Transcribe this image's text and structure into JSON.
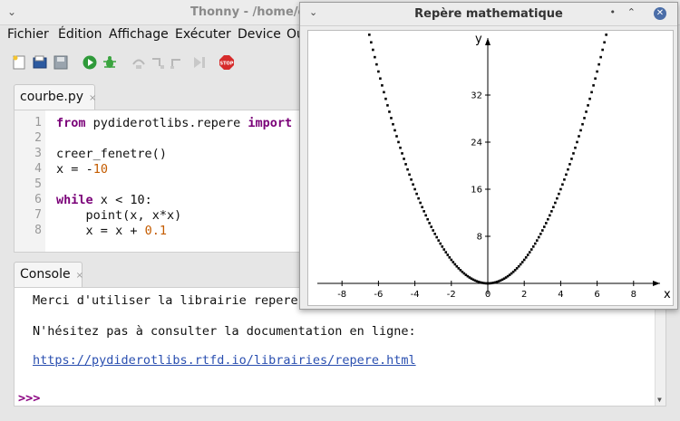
{
  "thonny": {
    "title": "Thonny - /home/c",
    "menu": [
      "Fichier",
      "Édition",
      "Affichage",
      "Exécuter",
      "Device",
      "Ou"
    ],
    "toolbar": {
      "new": "new-file-icon",
      "open": "open-file-icon",
      "save": "save-file-icon",
      "run": "run-icon",
      "debug": "debug-icon",
      "step_over": "step-over-icon",
      "step_into": "step-into-icon",
      "step_out": "step-out-icon",
      "resume": "resume-icon",
      "stop": "stop-icon",
      "stop_label": "STOP"
    },
    "editor_tab": {
      "label": "courbe.py",
      "close": "×"
    },
    "editor_lines": [
      {
        "n": "1",
        "code": "from pydiderotlibs.repere import *"
      },
      {
        "n": "2",
        "code": ""
      },
      {
        "n": "3",
        "code": "creer_fenetre()"
      },
      {
        "n": "4",
        "code": "x = -10"
      },
      {
        "n": "5",
        "code": ""
      },
      {
        "n": "6",
        "code": "while x < 10:"
      },
      {
        "n": "7",
        "code": "    point(x, x*x)"
      },
      {
        "n": "8",
        "code": "    x = x + 0.1"
      }
    ],
    "console_tab": {
      "label": "Console",
      "close": "×"
    },
    "console_lines": [
      "Merci d'utiliser la librairie repere",
      "N'hésitez pas à consulter la documentation en ligne:",
      "https://pydiderotlibs.rtfd.io/librairies/repere.html"
    ],
    "prompt": ">>>"
  },
  "plot_window": {
    "title": "Repère mathematique",
    "buttons": {
      "collapse": "⌄",
      "minimize": "•",
      "maximize": "⌃",
      "close": "✕"
    }
  },
  "chart_data": {
    "type": "scatter",
    "title": "",
    "xlabel": "x",
    "ylabel": "y",
    "xlim": [
      -8.9,
      9.9
    ],
    "ylim": [
      0,
      38
    ],
    "x_ticks": [
      -8,
      -6,
      -4,
      -2,
      0,
      2,
      4,
      6,
      8
    ],
    "y_ticks": [
      8,
      16,
      24,
      32
    ],
    "series": [
      {
        "function": "y = x*x",
        "x_start": -10,
        "x_end": 10,
        "x_step": 0.1
      }
    ],
    "grid": false
  }
}
